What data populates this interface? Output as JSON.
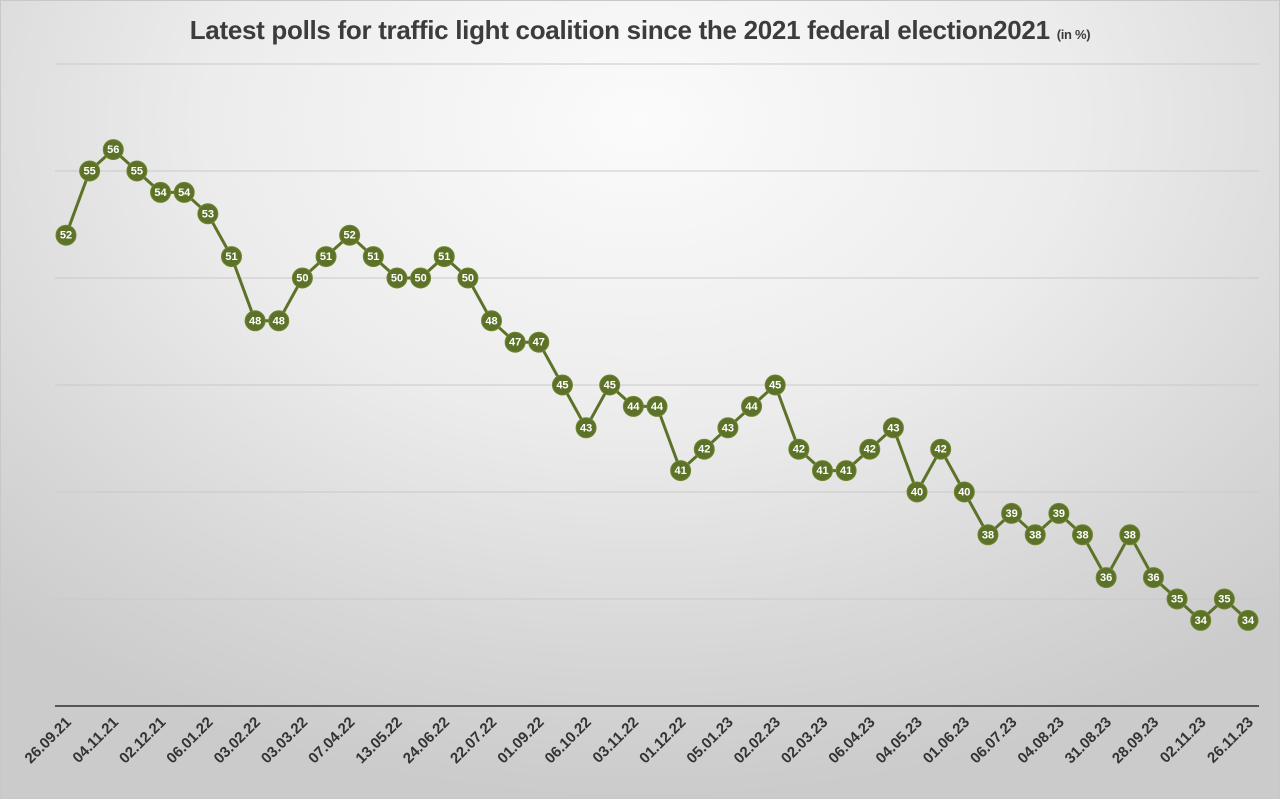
{
  "chart_data": {
    "type": "line",
    "title": "Latest polls for traffic light coalition since the 2021 federal election2021",
    "title_unit": "(in %)",
    "xlabel": "",
    "ylabel": "",
    "ylim": [
      30,
      60
    ],
    "gridlines_y": [
      35,
      40,
      45,
      50,
      55,
      60
    ],
    "grid": true,
    "legend": "none",
    "series_color": "#5d7229",
    "x_tick_labels": [
      "26.09.21",
      "04.11.21",
      "02.12.21",
      "06.01.22",
      "03.02.22",
      "03.03.22",
      "07.04.22",
      "13.05.22",
      "24.06.22",
      "22.07.22",
      "01.09.22",
      "06.10.22",
      "03.11.22",
      "01.12.22",
      "05.01.23",
      "02.02.23",
      "02.03.23",
      "06.04.23",
      "04.05.23",
      "01.06.23",
      "06.07.23",
      "04.08.23",
      "31.08.23",
      "28.09.23",
      "02.11.23",
      "26.11.23"
    ],
    "x_tick_every": 2,
    "series": [
      {
        "name": "Traffic light coalition",
        "values": [
          52,
          55,
          56,
          55,
          54,
          54,
          53,
          51,
          48,
          48,
          50,
          51,
          52,
          51,
          50,
          50,
          51,
          50,
          48,
          47,
          47,
          45,
          43,
          45,
          44,
          44,
          41,
          42,
          43,
          44,
          45,
          42,
          41,
          41,
          42,
          43,
          40,
          42,
          40,
          38,
          39,
          38,
          39,
          38,
          36,
          38,
          36,
          35,
          34,
          35,
          34
        ]
      }
    ]
  }
}
